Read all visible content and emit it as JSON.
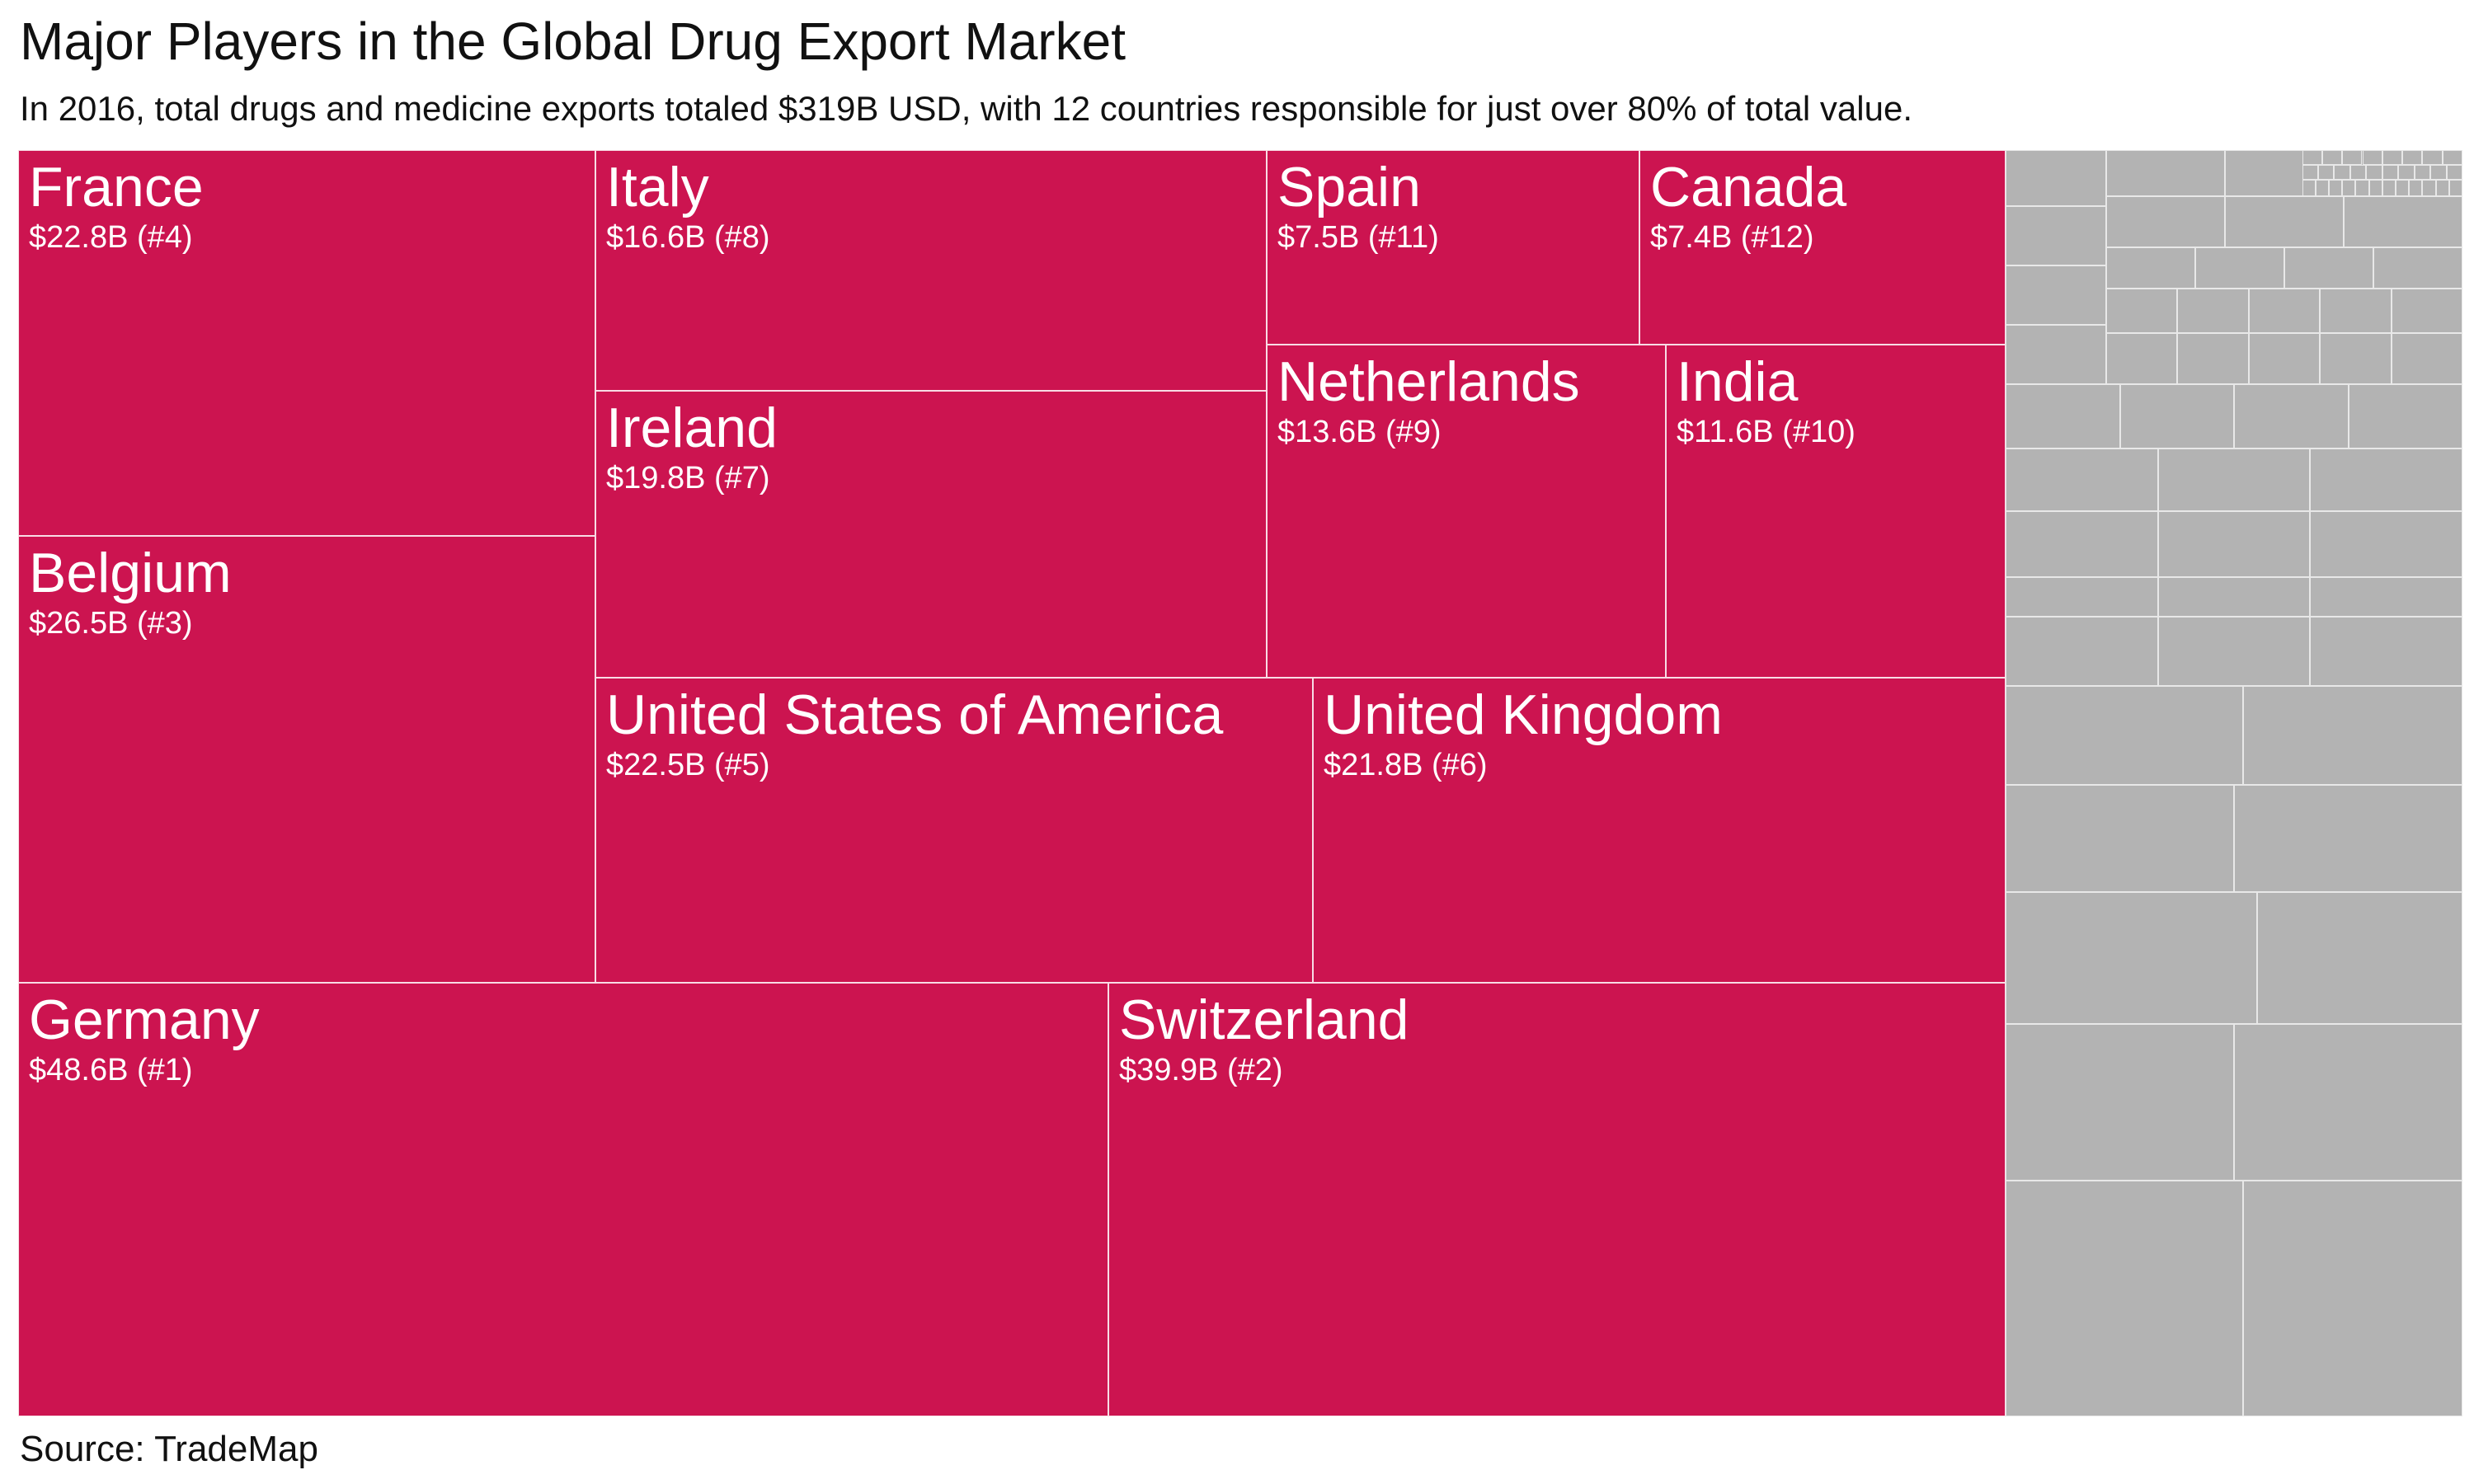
{
  "title": "Major Players in the Global Drug Export Market",
  "subtitle": "In 2016, total drugs and medicine exports totaled $319B USD, with 12 countries responsible for just over 80% of total value.",
  "source": "Source: TradeMap",
  "chart_data": {
    "type": "treemap",
    "title": "Major Players in the Global Drug Export Market",
    "subtitle": "In 2016, total drugs and medicine exports totaled $319B USD, with 12 countries responsible for just over 80% of total value.",
    "unit": "B USD",
    "total": 319,
    "colors": {
      "highlighted": "#cc1450",
      "other": "#b3b3b3"
    },
    "items": [
      {
        "name": "Germany",
        "value": 48.6,
        "rank": 1,
        "label": "$48.6B (#1)"
      },
      {
        "name": "Switzerland",
        "value": 39.9,
        "rank": 2,
        "label": "$39.9B (#2)"
      },
      {
        "name": "Belgium",
        "value": 26.5,
        "rank": 3,
        "label": "$26.5B (#3)"
      },
      {
        "name": "France",
        "value": 22.8,
        "rank": 4,
        "label": "$22.8B (#4)"
      },
      {
        "name": "United States of America",
        "value": 22.5,
        "rank": 5,
        "label": "$22.5B (#5)"
      },
      {
        "name": "United Kingdom",
        "value": 21.8,
        "rank": 6,
        "label": "$21.8B (#6)"
      },
      {
        "name": "Ireland",
        "value": 19.8,
        "rank": 7,
        "label": "$19.8B (#7)"
      },
      {
        "name": "Italy",
        "value": 16.6,
        "rank": 8,
        "label": "$16.6B (#8)"
      },
      {
        "name": "Netherlands",
        "value": 13.6,
        "rank": 9,
        "label": "$13.6B (#9)"
      },
      {
        "name": "India",
        "value": 11.6,
        "rank": 10,
        "label": "$11.6B (#10)"
      },
      {
        "name": "Spain",
        "value": 7.5,
        "rank": 11,
        "label": "$7.5B (#11)"
      },
      {
        "name": "Canada",
        "value": 7.4,
        "rank": 12,
        "label": "$7.4B (#12)"
      }
    ],
    "other_countries": "unlabeled grey tiles"
  }
}
